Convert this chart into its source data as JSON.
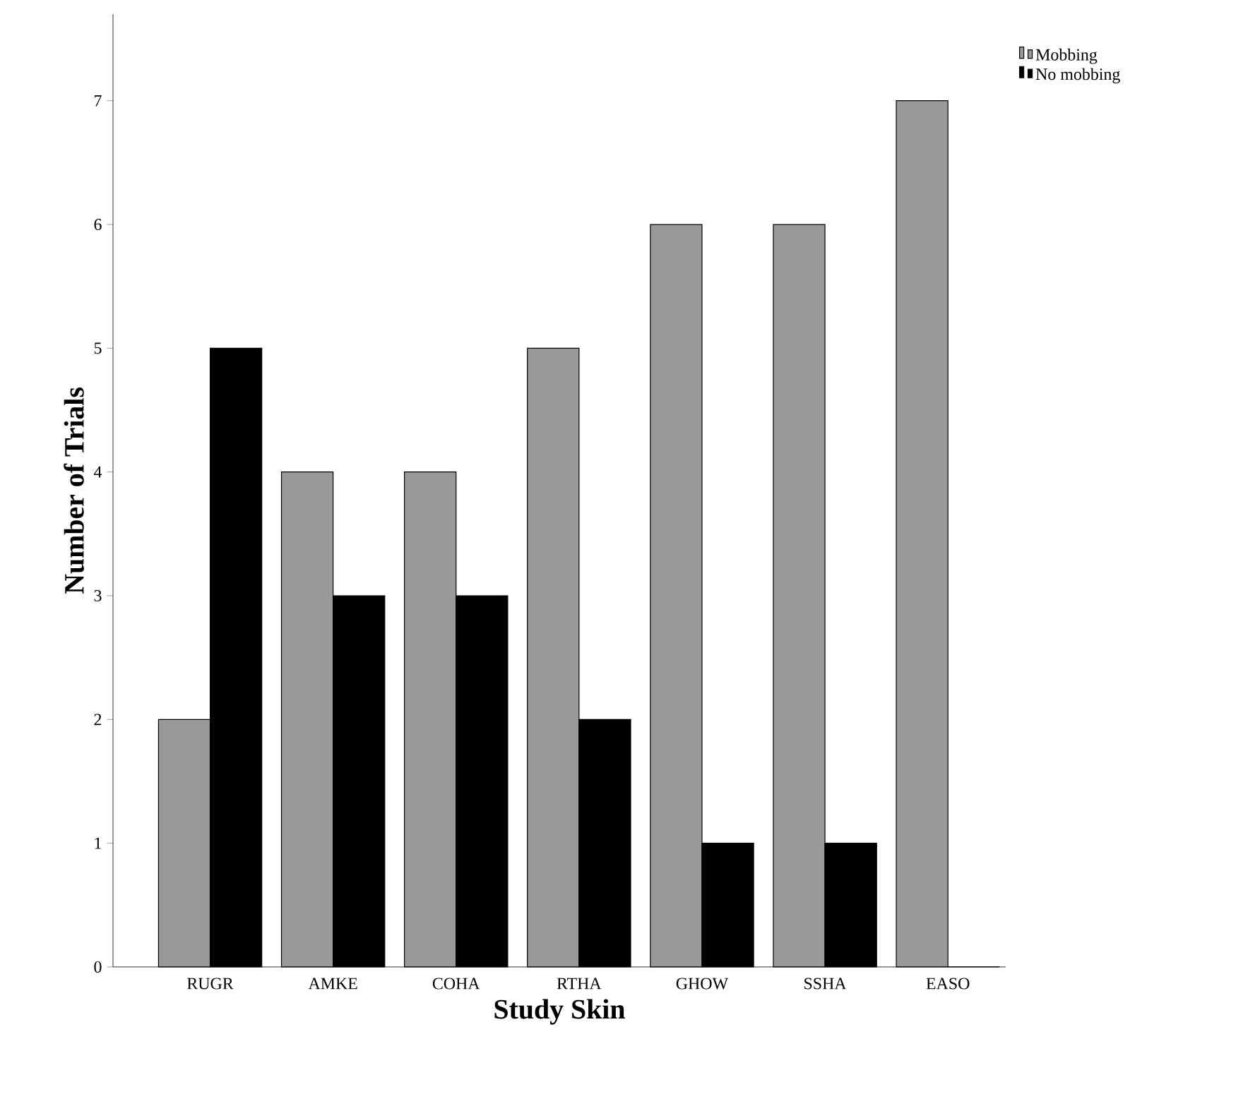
{
  "chart_data": {
    "type": "bar",
    "xlabel": "Study Skin",
    "ylabel": "Number of Trials",
    "categories": [
      "RUGR",
      "AMKE",
      "COHA",
      "RTHA",
      "GHOW",
      "SSHA",
      "EASO"
    ],
    "series": [
      {
        "name": "Mobbing",
        "color": "#999999",
        "values": [
          2,
          4,
          4,
          5,
          6,
          6,
          7
        ]
      },
      {
        "name": "No mobbing",
        "color": "#000000",
        "values": [
          5,
          3,
          3,
          2,
          1,
          1,
          0
        ]
      }
    ],
    "ylim": [
      0,
      7.7
    ],
    "yticks": [
      0,
      1,
      2,
      3,
      4,
      5,
      6,
      7
    ],
    "legend": "top right"
  }
}
